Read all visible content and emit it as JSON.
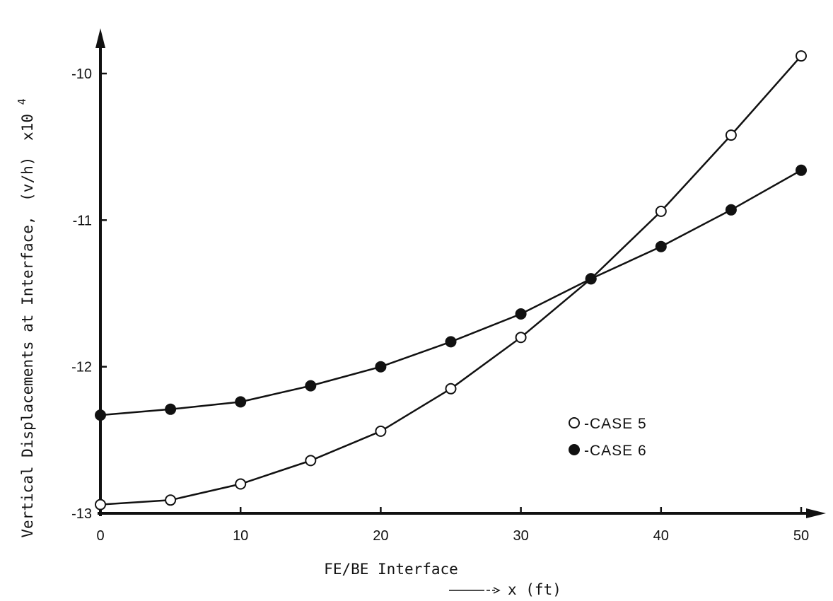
{
  "chart_data": {
    "type": "line",
    "xlabel": "FE/BE Interface",
    "xlabel_sub": "x (ft)",
    "ylabel": "Vertical Displacements at Interface,",
    "ylabel_symbol": "(v/h)",
    "ylabel_scale": "x10",
    "ylabel_scale_exp": "4",
    "xlim": [
      0,
      50
    ],
    "ylim": [
      -13,
      -9.9
    ],
    "x_ticks": [
      0,
      10,
      20,
      30,
      40,
      50
    ],
    "x_tick_labels": [
      "0",
      "10",
      "20",
      "30",
      "40",
      "50"
    ],
    "y_ticks": [
      -13,
      -12,
      -11,
      -10
    ],
    "y_tick_labels": [
      "-13",
      "-12",
      "-11",
      "-10"
    ],
    "grid": false,
    "legend_position": "right",
    "series": [
      {
        "name": "-CASE 5",
        "marker": "open-circle",
        "color": "#111111",
        "x": [
          0,
          5,
          10,
          15,
          20,
          25,
          30,
          35,
          40,
          45,
          50
        ],
        "y": [
          -12.94,
          -12.91,
          -12.8,
          -12.64,
          -12.44,
          -12.15,
          -11.8,
          -11.4,
          -10.94,
          -10.42,
          -9.88
        ]
      },
      {
        "name": "-CASE 6",
        "marker": "filled-circle",
        "color": "#111111",
        "x": [
          0,
          5,
          10,
          15,
          20,
          25,
          30,
          35,
          40,
          45,
          50
        ],
        "y": [
          -12.33,
          -12.29,
          -12.24,
          -12.13,
          -12.0,
          -11.83,
          -11.64,
          -11.4,
          -11.18,
          -10.93,
          -10.66
        ]
      }
    ]
  }
}
